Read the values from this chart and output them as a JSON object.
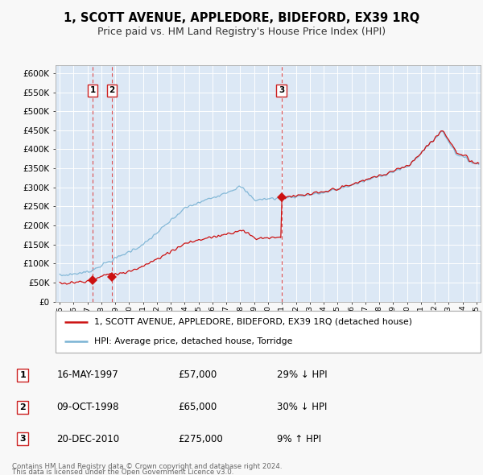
{
  "title": "1, SCOTT AVENUE, APPLEDORE, BIDEFORD, EX39 1RQ",
  "subtitle": "Price paid vs. HM Land Registry's House Price Index (HPI)",
  "legend_line1": "1, SCOTT AVENUE, APPLEDORE, BIDEFORD, EX39 1RQ (detached house)",
  "legend_line2": "HPI: Average price, detached house, Torridge",
  "footnote1": "Contains HM Land Registry data © Crown copyright and database right 2024.",
  "footnote2": "This data is licensed under the Open Government Licence v3.0.",
  "sales": [
    {
      "num": 1,
      "date": "16-MAY-1997",
      "price": 57000,
      "year": 1997.37,
      "pct": "29%",
      "dir": "↓"
    },
    {
      "num": 2,
      "date": "09-OCT-1998",
      "price": 65000,
      "year": 1998.77,
      "pct": "30%",
      "dir": "↓"
    },
    {
      "num": 3,
      "date": "20-DEC-2010",
      "price": 275000,
      "year": 2010.96,
      "pct": "9%",
      "dir": "↑"
    }
  ],
  "hpi_color": "#7ab3d4",
  "sale_color": "#cc1111",
  "plot_bg": "#dce8f5",
  "grid_color": "#c0d0e0",
  "fig_bg": "#f8f8f8",
  "ylim": [
    0,
    620000
  ],
  "ytick_step": 50000,
  "xlim_start": 1994.7,
  "xlim_end": 2025.3
}
